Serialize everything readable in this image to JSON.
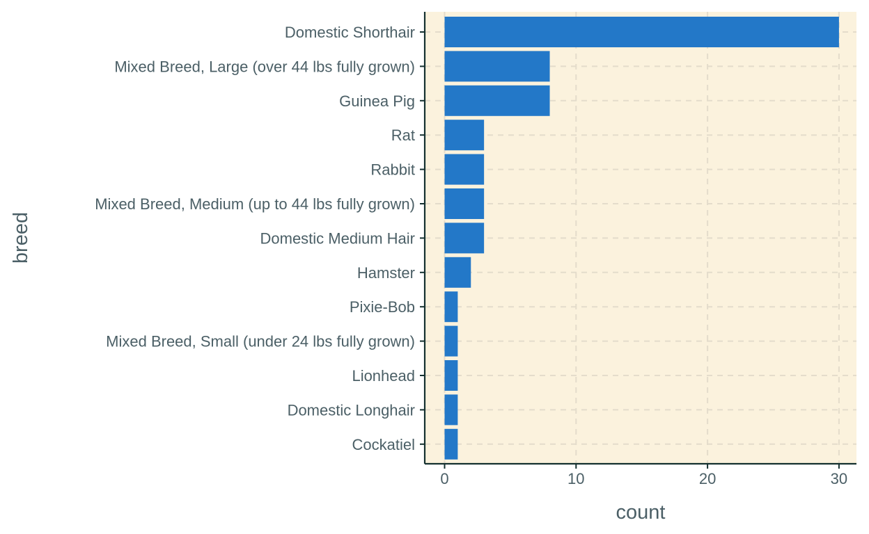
{
  "chart_data": {
    "type": "bar",
    "orientation": "horizontal",
    "categories": [
      "Domestic Shorthair",
      "Mixed Breed, Large (over 44 lbs fully grown)",
      "Guinea Pig",
      "Rat",
      "Rabbit",
      "Mixed Breed, Medium (up to 44 lbs fully grown)",
      "Domestic Medium Hair",
      "Hamster",
      "Pixie-Bob",
      "Mixed Breed, Small (under 24 lbs fully grown)",
      "Lionhead",
      "Domestic Longhair",
      "Cockatiel"
    ],
    "values": [
      30,
      8,
      8,
      3,
      3,
      3,
      3,
      2,
      1,
      1,
      1,
      1,
      1
    ],
    "xlabel": "count",
    "ylabel": "breed",
    "xlim": [
      -1.5,
      31.5
    ],
    "x_ticks": [
      "0",
      "10",
      "20",
      "30"
    ],
    "grid": true,
    "grid_style": "dashed",
    "legend": "none",
    "colors": {
      "bar": "#2378c8",
      "panel_background": "#fbf2dd",
      "grid": "#e4dccb",
      "axis_line": "#14302f",
      "text": "#4b5f66"
    }
  }
}
